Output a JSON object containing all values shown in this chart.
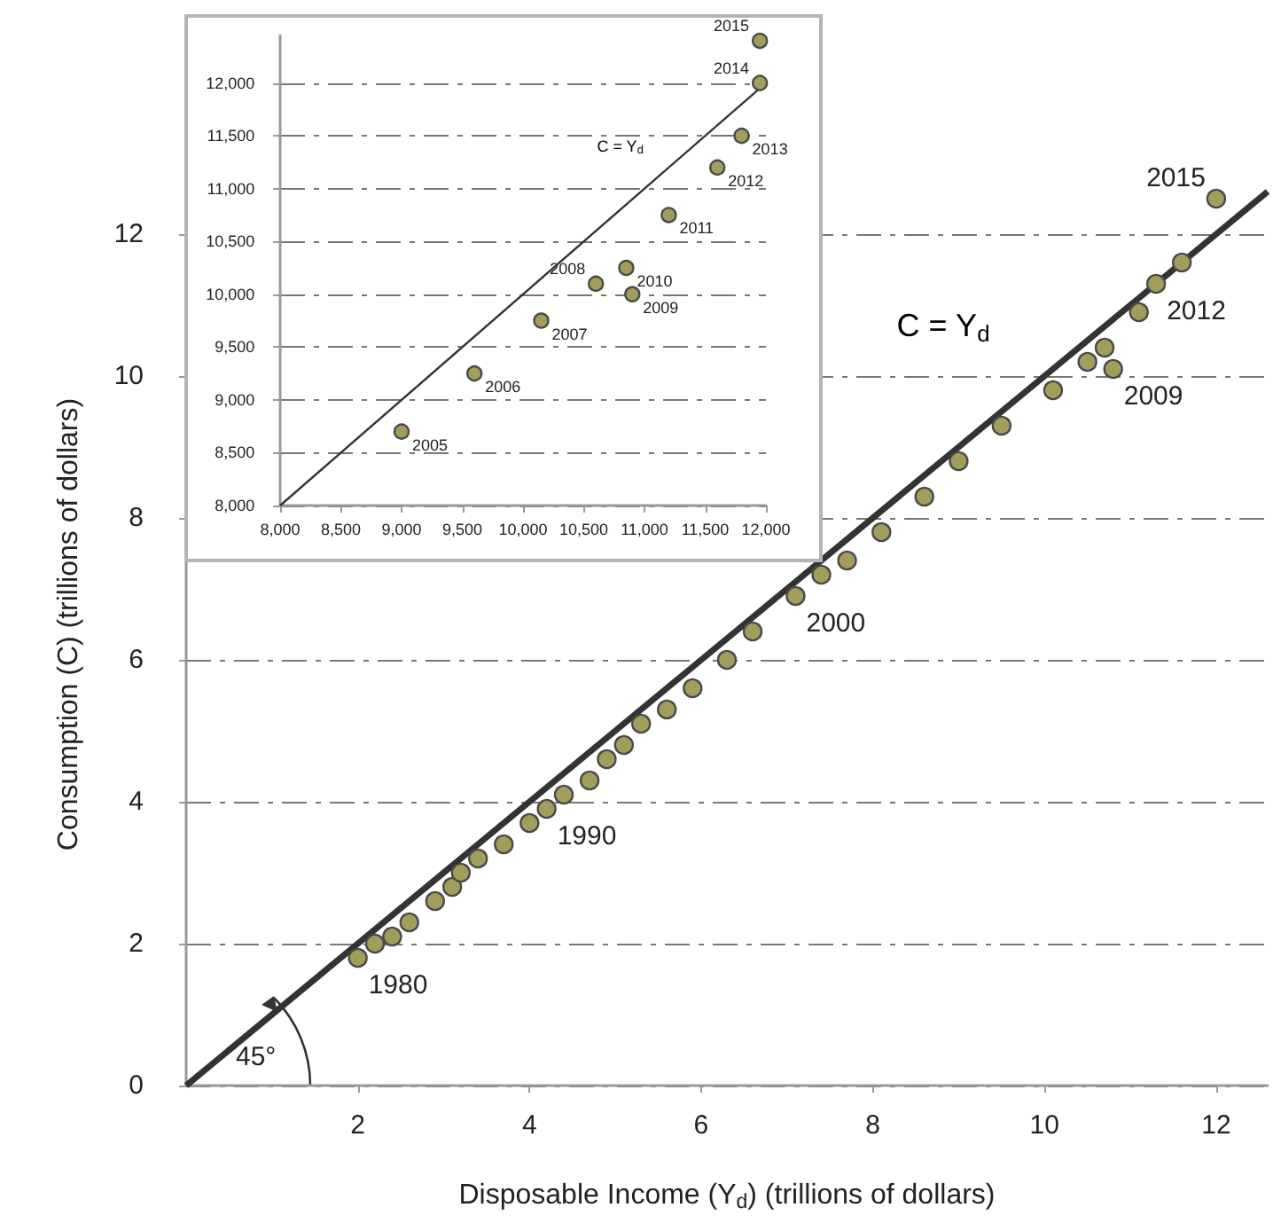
{
  "chart_data": [
    {
      "type": "scatter",
      "xlabel": "Disposable Income (Y$_{d}$) (trillions of dollars)",
      "ylabel": "Consumption (C) (trillions of dollars)",
      "xlim": [
        0,
        12.6
      ],
      "ylim": [
        0,
        13
      ],
      "xticks": [
        2,
        4,
        6,
        8,
        10,
        12
      ],
      "yticks": [
        0,
        2,
        4,
        6,
        8,
        10,
        12
      ],
      "grid": "y",
      "series": [
        {
          "marker": "circle",
          "color": "#a39d5c",
          "x": [
            2.0,
            2.2,
            2.4,
            2.6,
            2.9,
            3.1,
            3.2,
            3.4,
            3.7,
            4.0,
            4.2,
            4.4,
            4.7,
            4.9,
            5.1,
            5.3,
            5.6,
            5.9,
            6.3,
            6.6,
            7.1,
            7.4,
            7.7,
            8.1,
            8.6,
            9.0,
            9.5,
            10.1,
            10.5,
            10.8,
            10.7,
            11.1,
            11.3,
            11.6,
            12.0
          ],
          "values": [
            1.8,
            2.0,
            2.1,
            2.3,
            2.6,
            2.8,
            3.0,
            3.2,
            3.4,
            3.7,
            3.9,
            4.1,
            4.3,
            4.6,
            4.8,
            5.1,
            5.3,
            5.6,
            6.0,
            6.4,
            6.9,
            7.2,
            7.4,
            7.8,
            8.3,
            8.8,
            9.3,
            9.8,
            10.2,
            10.1,
            10.4,
            10.9,
            11.3,
            11.6,
            12.5
          ]
        },
        {
          "type": "line",
          "marker": "none",
          "color": "#333333",
          "x": [
            0,
            12.6
          ],
          "values": [
            0,
            12.6
          ]
        }
      ],
      "annotations": [
        "C = Y$_{d}$",
        "45°",
        {
          "text": "1980",
          "x": 2.0,
          "y": 1.8
        },
        {
          "text": "1990",
          "x": 4.2,
          "y": 3.9
        },
        {
          "text": "2000",
          "x": 7.1,
          "y": 6.9
        },
        {
          "text": "2009",
          "x": 10.8,
          "y": 10.1
        },
        {
          "text": "2012",
          "x": 11.3,
          "y": 11.3
        },
        {
          "text": "2015",
          "x": 12.0,
          "y": 12.5
        }
      ]
    },
    {
      "type": "scatter",
      "xlim": [
        8000,
        12000
      ],
      "ylim": [
        8000,
        12450
      ],
      "xticks": [
        {
          "value": 8000,
          "label": "8,000"
        },
        {
          "value": 8500,
          "label": "8,500"
        },
        {
          "value": 9000,
          "label": "9,000"
        },
        {
          "value": 9500,
          "label": "9,500"
        },
        {
          "value": 10000,
          "label": "10,000"
        },
        {
          "value": 10500,
          "label": "10,500"
        },
        {
          "value": 11000,
          "label": "11,000"
        },
        {
          "value": 11500,
          "label": "11,500"
        },
        {
          "value": 12000,
          "label": "12,000"
        }
      ],
      "yticks": [
        {
          "value": 8000,
          "label": "8,000"
        },
        {
          "value": 8500,
          "label": "8,500"
        },
        {
          "value": 9000,
          "label": "9,000"
        },
        {
          "value": 9500,
          "label": "9,500"
        },
        {
          "value": 10000,
          "label": "10,000"
        },
        {
          "value": 10500,
          "label": "10,500"
        },
        {
          "value": 11000,
          "label": "11,000"
        },
        {
          "value": 11500,
          "label": "11,500"
        },
        {
          "value": 12000,
          "label": "12,000"
        }
      ],
      "grid": "y",
      "series": [
        {
          "marker": "circle",
          "color": "#a39d5c",
          "x": [
            9000,
            9600,
            10150,
            10600,
            10900,
            10850,
            11200,
            11600,
            11800,
            11950,
            11950
          ],
          "values": [
            8700,
            9250,
            9750,
            10100,
            10000,
            10250,
            10750,
            11200,
            11500,
            12000,
            12400
          ]
        },
        {
          "type": "line",
          "marker": "none",
          "color": "#333333",
          "x": [
            8000,
            12000
          ],
          "values": [
            8000,
            12000
          ]
        }
      ],
      "annotations": [
        "C = Y$_{d}$",
        {
          "text": "2005",
          "x": 9000,
          "y": 8700
        },
        {
          "text": "2006",
          "x": 9600,
          "y": 9250
        },
        {
          "text": "2007",
          "x": 10150,
          "y": 9750
        },
        {
          "text": "2008",
          "x": 10600,
          "y": 10100
        },
        {
          "text": "2009",
          "x": 10900,
          "y": 10000
        },
        {
          "text": "2010",
          "x": 10850,
          "y": 10250
        },
        {
          "text": "2011",
          "x": 11200,
          "y": 10750
        },
        {
          "text": "2012",
          "x": 11600,
          "y": 11200
        },
        {
          "text": "2013",
          "x": 11800,
          "y": 11500
        },
        {
          "text": "2014",
          "x": 11950,
          "y": 12000
        },
        {
          "text": "2015",
          "x": 11950,
          "y": 12400
        }
      ]
    }
  ]
}
